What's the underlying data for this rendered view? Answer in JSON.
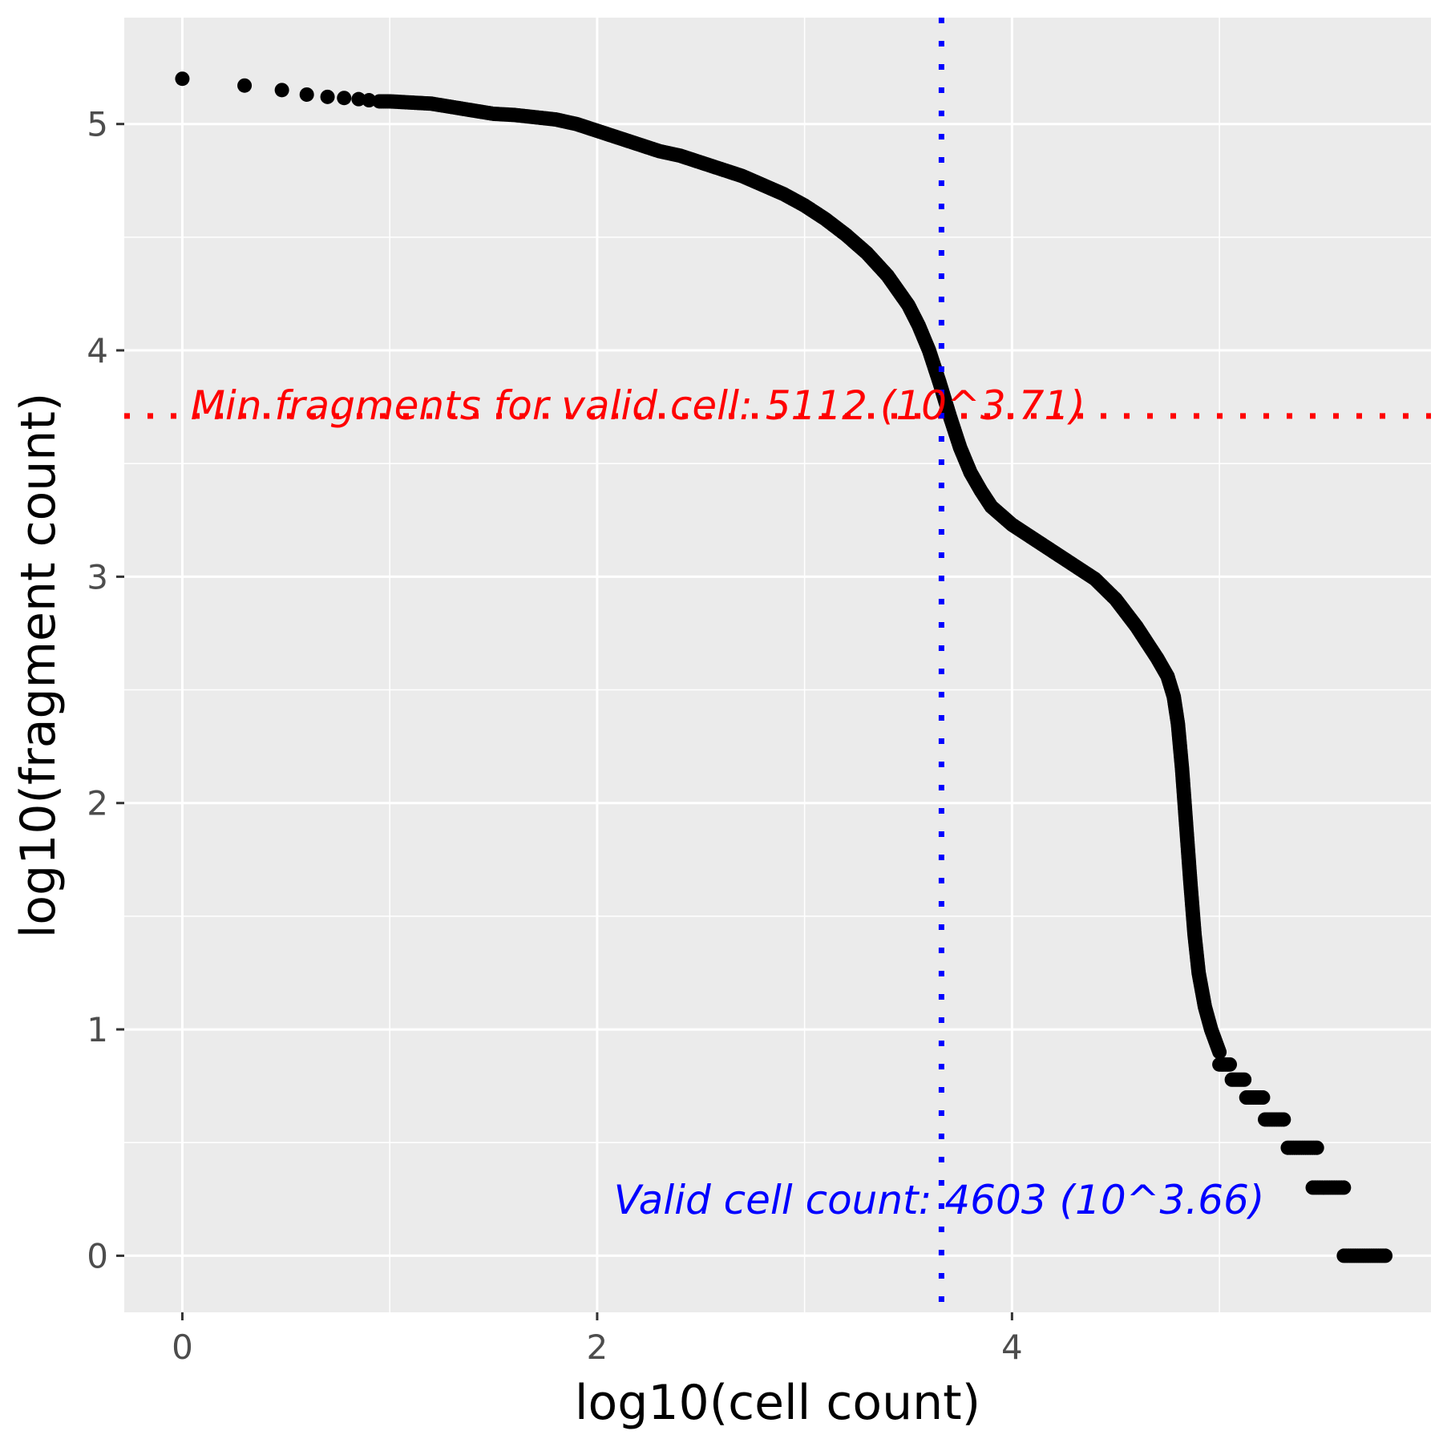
{
  "chart_data": {
    "type": "scatter",
    "title": "",
    "xlabel": "log10(cell count)",
    "ylabel": "log10(fragment count)",
    "xlim": [
      -0.28,
      6.02
    ],
    "ylim": [
      -0.25,
      5.47
    ],
    "x_ticks": [
      0,
      2,
      4
    ],
    "y_ticks": [
      0,
      1,
      2,
      3,
      4,
      5
    ],
    "grid": true,
    "background": "#ebebeb",
    "grid_color": "#ffffff",
    "point_color": "#000000",
    "curve": [
      [
        0.0,
        5.2
      ],
      [
        0.3,
        5.17
      ],
      [
        0.48,
        5.15
      ],
      [
        0.6,
        5.13
      ],
      [
        0.7,
        5.12
      ],
      [
        0.78,
        5.115
      ],
      [
        0.85,
        5.11
      ],
      [
        0.9,
        5.105
      ],
      [
        0.95,
        5.1
      ],
      [
        1.0,
        5.1
      ],
      [
        1.1,
        5.095
      ],
      [
        1.2,
        5.09
      ],
      [
        1.3,
        5.075
      ],
      [
        1.4,
        5.06
      ],
      [
        1.5,
        5.045
      ],
      [
        1.6,
        5.04
      ],
      [
        1.7,
        5.03
      ],
      [
        1.8,
        5.02
      ],
      [
        1.9,
        5.0
      ],
      [
        2.0,
        4.97
      ],
      [
        2.1,
        4.94
      ],
      [
        2.2,
        4.91
      ],
      [
        2.3,
        4.88
      ],
      [
        2.4,
        4.86
      ],
      [
        2.5,
        4.83
      ],
      [
        2.6,
        4.8
      ],
      [
        2.7,
        4.77
      ],
      [
        2.8,
        4.73
      ],
      [
        2.9,
        4.69
      ],
      [
        3.0,
        4.64
      ],
      [
        3.1,
        4.58
      ],
      [
        3.2,
        4.51
      ],
      [
        3.3,
        4.43
      ],
      [
        3.4,
        4.33
      ],
      [
        3.5,
        4.2
      ],
      [
        3.55,
        4.11
      ],
      [
        3.6,
        4.0
      ],
      [
        3.65,
        3.86
      ],
      [
        3.7,
        3.71
      ],
      [
        3.75,
        3.57
      ],
      [
        3.8,
        3.46
      ],
      [
        3.85,
        3.38
      ],
      [
        3.9,
        3.31
      ],
      [
        4.0,
        3.23
      ],
      [
        4.1,
        3.17
      ],
      [
        4.2,
        3.11
      ],
      [
        4.3,
        3.05
      ],
      [
        4.4,
        2.99
      ],
      [
        4.5,
        2.9
      ],
      [
        4.6,
        2.78
      ],
      [
        4.7,
        2.64
      ],
      [
        4.75,
        2.56
      ],
      [
        4.78,
        2.47
      ],
      [
        4.8,
        2.35
      ],
      [
        4.82,
        2.15
      ],
      [
        4.84,
        1.9
      ],
      [
        4.86,
        1.65
      ],
      [
        4.88,
        1.42
      ],
      [
        4.9,
        1.25
      ],
      [
        4.93,
        1.1
      ],
      [
        4.96,
        1.0
      ],
      [
        5.0,
        0.9
      ]
    ],
    "steps": [
      {
        "y": 0.845,
        "x_start": 5.0,
        "x_end": 5.05
      },
      {
        "y": 0.778,
        "x_start": 5.06,
        "x_end": 5.12
      },
      {
        "y": 0.699,
        "x_start": 5.13,
        "x_end": 5.21
      },
      {
        "y": 0.602,
        "x_start": 5.22,
        "x_end": 5.31
      },
      {
        "y": 0.477,
        "x_start": 5.33,
        "x_end": 5.47
      },
      {
        "y": 0.301,
        "x_start": 5.45,
        "x_end": 5.6
      },
      {
        "y": 0.0,
        "x_start": 5.6,
        "x_end": 5.8
      }
    ],
    "threshold_lines": [
      {
        "orientation": "horizontal",
        "value": 3.71,
        "color": "#ff0000",
        "label": "Min fragments for valid cell: 5112 (10^3.71)",
        "label_x": 0.04,
        "label_y": 3.76
      },
      {
        "orientation": "vertical",
        "value": 3.66,
        "color": "#0000ff",
        "label": "Valid cell count: 4603 (10^3.66)",
        "label_x": 2.08,
        "label_y": 0.25
      }
    ]
  }
}
